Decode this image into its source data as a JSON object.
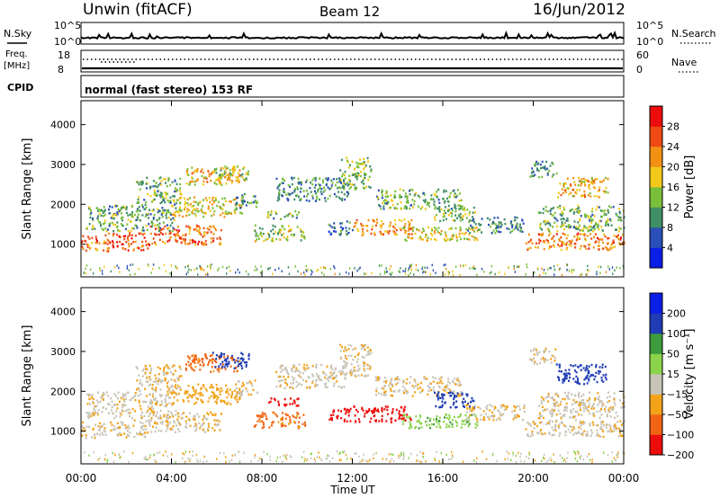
{
  "header": {
    "station": "Unwin (fitACF)",
    "beam": "Beam 12",
    "date": "16/Jun/2012"
  },
  "strip_top": {
    "left_label": "N.Sky",
    "right_label": "N.Search",
    "ticks_left": [
      "10^5",
      "10^0"
    ],
    "ticks_right": [
      "10^5",
      "10^0"
    ]
  },
  "strip_freq": {
    "left_label_1": "Freq.",
    "left_label_2": "[MHz]",
    "right_label": "Nave",
    "ticks_left": [
      "18",
      "8"
    ],
    "ticks_right": [
      "60",
      "0"
    ]
  },
  "cpid": {
    "label": "CPID",
    "text": "normal (fast stereo) 153 RF"
  },
  "panels": [
    {
      "ylabel": "Slant Range [km]",
      "yticks": [
        "4000",
        "3000",
        "2000",
        "1000"
      ],
      "colorbar_label": "Power [dB]",
      "colorbar_ticks": [
        "28",
        "24",
        "20",
        "16",
        "12",
        "8",
        "4"
      ],
      "colors": [
        "#0a1ee6",
        "#2a4fb8",
        "#3f8e64",
        "#7abf3a",
        "#f1c91a",
        "#f29013",
        "#ef4a13",
        "#ee0d0d"
      ]
    },
    {
      "ylabel": "Slant Range [km]",
      "yticks": [
        "4000",
        "3000",
        "2000",
        "1000"
      ],
      "colorbar_label": "Velocity [m s⁻¹]",
      "colorbar_ticks": [
        "200",
        "100",
        "50",
        "15",
        "−15",
        "−50",
        "−100",
        "−200"
      ],
      "colors": [
        "#ee0d0d",
        "#f26414",
        "#f2a31a",
        "#c8c4b8",
        "#8bd34a",
        "#3d9a3d",
        "#1f3cb4",
        "#0a1ee6"
      ]
    }
  ],
  "xaxis": {
    "label": "Time UT",
    "ticks": [
      "00:00",
      "04:00",
      "08:00",
      "12:00",
      "16:00",
      "20:00",
      "00:00"
    ]
  },
  "chart_data": {
    "type": "heatmap",
    "x_range_hours": [
      0,
      24
    ],
    "y_range_km": [
      180,
      4600
    ],
    "gridlines": false,
    "bands": [
      {
        "t0": 0.0,
        "t1": 1.2,
        "r0": 850,
        "r1": 1250,
        "power": 24,
        "velocity": -12
      },
      {
        "t0": 1.2,
        "t1": 3.0,
        "r0": 870,
        "r1": 1300,
        "power": 26,
        "velocity": -10
      },
      {
        "t0": 3.0,
        "t1": 6.2,
        "r0": 1000,
        "r1": 1500,
        "power": 24,
        "velocity": -12
      },
      {
        "t0": 0.2,
        "t1": 4.2,
        "r0": 1350,
        "r1": 2000,
        "power": 12,
        "velocity": -8
      },
      {
        "t0": 4.0,
        "t1": 7.1,
        "r0": 1700,
        "r1": 2200,
        "power": 18,
        "velocity": -30
      },
      {
        "t0": 2.4,
        "t1": 4.4,
        "r0": 2000,
        "r1": 2700,
        "power": 13,
        "velocity": -14
      },
      {
        "t0": 4.6,
        "t1": 7.0,
        "r0": 2500,
        "r1": 2950,
        "power": 20,
        "velocity": -60
      },
      {
        "t0": 5.8,
        "t1": 7.4,
        "r0": 2600,
        "r1": 3000,
        "power": 16,
        "velocity": 150
      },
      {
        "t0": 6.8,
        "t1": 7.8,
        "r0": 1900,
        "r1": 2300,
        "power": 10,
        "velocity": -10
      },
      {
        "t0": 7.6,
        "t1": 9.9,
        "r0": 1100,
        "r1": 1500,
        "power": 15,
        "velocity": -60
      },
      {
        "t0": 8.2,
        "t1": 9.6,
        "r0": 1650,
        "r1": 1850,
        "power": 12,
        "velocity": -120
      },
      {
        "t0": 8.6,
        "t1": 11.8,
        "r0": 2100,
        "r1": 2700,
        "power": 10,
        "velocity": -8
      },
      {
        "t0": 11.4,
        "t1": 12.8,
        "r0": 2400,
        "r1": 3200,
        "power": 14,
        "velocity": -12
      },
      {
        "t0": 10.9,
        "t1": 12.0,
        "r0": 1250,
        "r1": 1600,
        "power": 8,
        "velocity": -210
      },
      {
        "t0": 12.0,
        "t1": 14.6,
        "r0": 1250,
        "r1": 1650,
        "power": 22,
        "velocity": -150
      },
      {
        "t0": 14.2,
        "t1": 17.5,
        "r0": 1100,
        "r1": 1450,
        "power": 18,
        "velocity": 40
      },
      {
        "t0": 13.0,
        "t1": 16.8,
        "r0": 1900,
        "r1": 2400,
        "power": 12,
        "velocity": -12
      },
      {
        "t0": 15.6,
        "t1": 17.4,
        "r0": 1600,
        "r1": 2000,
        "power": 14,
        "velocity": 180
      },
      {
        "t0": 17.0,
        "t1": 19.6,
        "r0": 1300,
        "r1": 1700,
        "power": 10,
        "velocity": -15
      },
      {
        "t0": 19.6,
        "t1": 24.0,
        "r0": 880,
        "r1": 1300,
        "power": 24,
        "velocity": -10
      },
      {
        "t0": 20.2,
        "t1": 24.0,
        "r0": 1350,
        "r1": 2000,
        "power": 13,
        "velocity": -8
      },
      {
        "t0": 21.0,
        "t1": 23.3,
        "r0": 2200,
        "r1": 2700,
        "power": 20,
        "velocity": 120
      },
      {
        "t0": 19.8,
        "t1": 21.0,
        "r0": 2700,
        "r1": 3100,
        "power": 10,
        "velocity": -10
      }
    ]
  }
}
